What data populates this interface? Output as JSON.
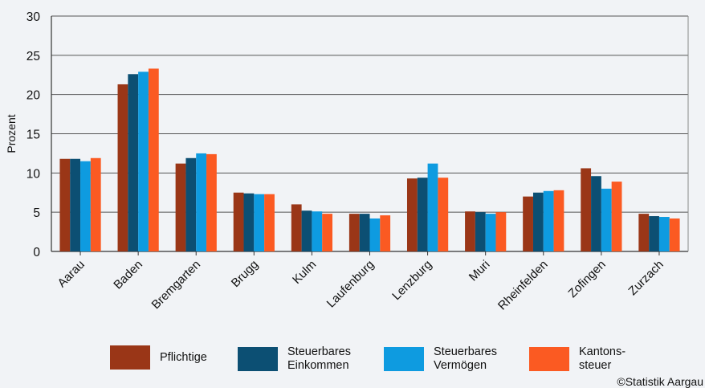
{
  "chart_data": {
    "type": "bar",
    "ylabel": "Prozent",
    "ylim": [
      0,
      30
    ],
    "yticks": [
      0,
      5,
      10,
      15,
      20,
      25,
      30
    ],
    "grid": true,
    "legend_position": "bottom",
    "categories": [
      "Aarau",
      "Baden",
      "Bremgarten",
      "Brugg",
      "Kulm",
      "Laufenburg",
      "Lenzburg",
      "Muri",
      "Rheinfelden",
      "Zofingen",
      "Zurzach"
    ],
    "series": [
      {
        "name": "Pflichtige",
        "color": "#9a3617",
        "values": [
          11.8,
          21.3,
          11.2,
          7.5,
          6.0,
          4.8,
          9.3,
          5.1,
          7.0,
          10.6,
          4.8
        ]
      },
      {
        "name": "Steuerbares\nEinkommen",
        "color": "#0c4f73",
        "values": [
          11.8,
          22.6,
          11.9,
          7.4,
          5.2,
          4.8,
          9.4,
          5.0,
          7.5,
          9.6,
          4.5
        ]
      },
      {
        "name": "Steuerbares\nVermögen",
        "color": "#0e9be0",
        "values": [
          11.5,
          22.9,
          12.5,
          7.3,
          5.1,
          4.2,
          11.2,
          4.8,
          7.7,
          8.0,
          4.4
        ]
      },
      {
        "name": "Kantons-\nsteuer",
        "color": "#fb5a22",
        "values": [
          11.9,
          23.3,
          12.4,
          7.3,
          4.8,
          4.6,
          9.4,
          5.0,
          7.8,
          8.9,
          4.2
        ]
      }
    ]
  },
  "credit": "©Statistik Aargau"
}
